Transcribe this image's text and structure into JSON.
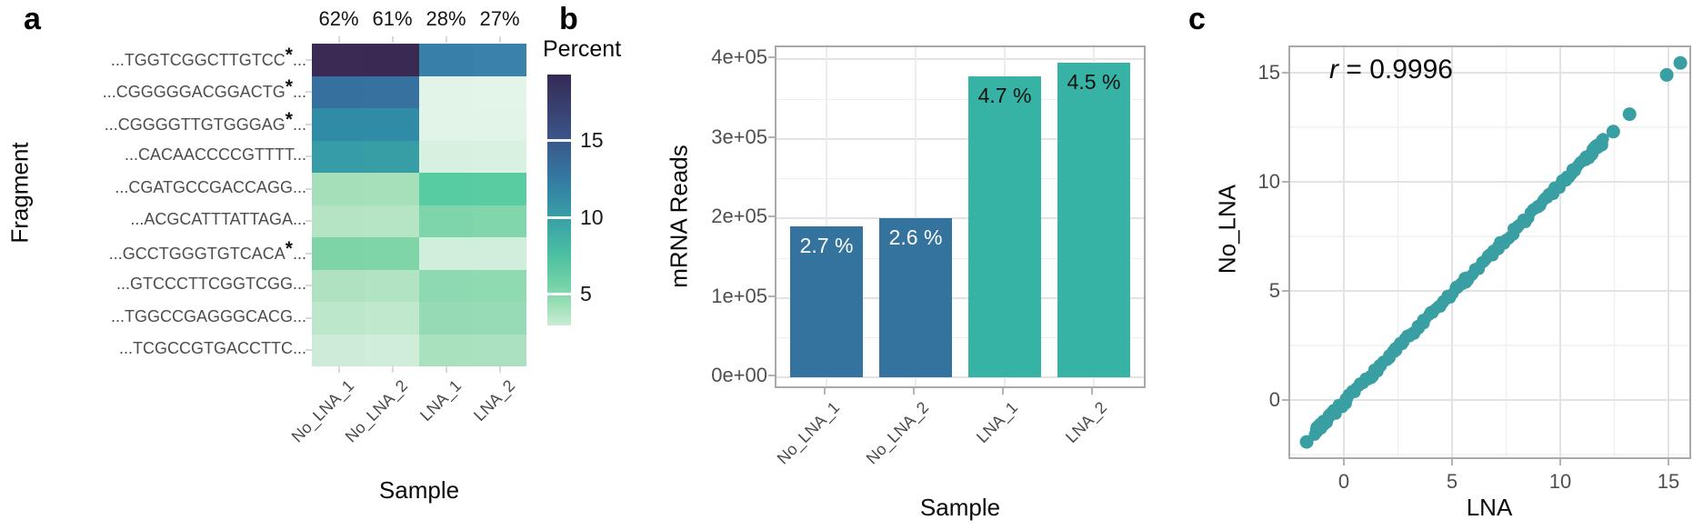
{
  "figure_labels": {
    "a": "a",
    "b": "b",
    "c": "c"
  },
  "chart_data": [
    {
      "type": "heatmap",
      "panel": "a",
      "xlabel": "Sample",
      "ylabel": "Fragment",
      "x_categories": [
        "No_LNA_1",
        "No_LNA_2",
        "LNA_1",
        "LNA_2"
      ],
      "column_header_percents": [
        "62%",
        "61%",
        "28%",
        "27%"
      ],
      "y_categories": [
        "...TGGTCGGCTTGTCC*...",
        "...CGGGGGACGGACTG*...",
        "...CGGGGTTGTGGGAG*...",
        "...CACAACCCCGTTTT...",
        "...CGATGCCGACCAGG...",
        "...ACGCATTTATTAGA...",
        "...GCCTGGGTGTCACA*...",
        "...GTCCCTTCGGTCGG...",
        "...TGGCCGAGGGCACG...",
        "...TCGCCGTGACCTTC..."
      ],
      "values_percent_estimated": [
        [
          19.0,
          18.8,
          11.3,
          11.2
        ],
        [
          13.0,
          12.8,
          1.5,
          1.4
        ],
        [
          11.5,
          11.4,
          1.5,
          1.5
        ],
        [
          9.8,
          9.7,
          2.0,
          1.9
        ],
        [
          4.0,
          3.9,
          6.3,
          6.2
        ],
        [
          3.4,
          3.3,
          5.2,
          5.1
        ],
        [
          5.6,
          5.5,
          2.4,
          2.3
        ],
        [
          3.5,
          3.4,
          4.6,
          4.5
        ],
        [
          3.0,
          2.9,
          4.3,
          4.2
        ],
        [
          2.6,
          2.5,
          3.6,
          3.5
        ]
      ],
      "cell_colors": [
        [
          "#3a2b55",
          "#382a53",
          "#3880aa",
          "#3a82ab"
        ],
        [
          "#35709f",
          "#36719f",
          "#e2f4e8",
          "#e3f5e9"
        ],
        [
          "#2f8ba6",
          "#308ca6",
          "#e2f4e8",
          "#e2f4e8"
        ],
        [
          "#369da6",
          "#379ea6",
          "#d8f0df",
          "#d9f1e0"
        ],
        [
          "#a4dfba",
          "#a6e0bb",
          "#57cba1",
          "#59cca2"
        ],
        [
          "#b4e4c4",
          "#b6e5c5",
          "#7fd5ab",
          "#81d6ac"
        ],
        [
          "#7ed4a7",
          "#80d5a8",
          "#cfeedb",
          "#d0eedc"
        ],
        [
          "#b0e2c1",
          "#b2e3c2",
          "#8ed9b1",
          "#90dab2"
        ],
        [
          "#bde7cb",
          "#bfe8cc",
          "#94dab5",
          "#96dbb6"
        ],
        [
          "#cdecd7",
          "#cfedd8",
          "#a9e1bf",
          "#abe1c0"
        ]
      ],
      "legend": {
        "title": "Percent",
        "ticks": [
          15,
          10,
          5
        ],
        "scale_top_value": 19.3,
        "scale_bottom_value": 2.9,
        "gradient": [
          {
            "c": "#352a54",
            "p": 0
          },
          {
            "c": "#3b5286",
            "p": 24
          },
          {
            "c": "#347ba3",
            "p": 42
          },
          {
            "c": "#389fa6",
            "p": 57
          },
          {
            "c": "#4cc0a2",
            "p": 72
          },
          {
            "c": "#74d2a7",
            "p": 84
          },
          {
            "c": "#a8e3bd",
            "p": 94
          },
          {
            "c": "#c9ecd4",
            "p": 100
          }
        ]
      }
    },
    {
      "type": "bar",
      "panel": "b",
      "xlabel": "Sample",
      "ylabel": "mRNA Reads",
      "categories": [
        "No_LNA_1",
        "No_LNA_2",
        "LNA_1",
        "LNA_2"
      ],
      "values": [
        190000,
        200000,
        378000,
        395000
      ],
      "bar_labels": [
        "2.7 %",
        "2.6 %",
        "4.7 %",
        "4.5 %"
      ],
      "bar_colors": [
        "#33739e",
        "#33739e",
        "#37b3a6",
        "#37b3a6"
      ],
      "bar_label_text_colors": [
        "#ffffff",
        "#ffffff",
        "#111111",
        "#111111"
      ],
      "ylim": [
        0,
        400000
      ],
      "ytick_values": [
        0,
        100000,
        200000,
        300000,
        400000
      ],
      "ytick_labels": [
        "0e+00",
        "1e+05",
        "2e+05",
        "3e+05",
        "4e+05"
      ],
      "grid": true
    },
    {
      "type": "scatter",
      "panel": "c",
      "xlabel": "LNA",
      "ylabel": "No_LNA",
      "annotation_r": "r",
      "annotation_rest": " = 0.9996",
      "point_color": "#399fa3",
      "xlim": [
        -2.6,
        16.1
      ],
      "ylim": [
        -2.8,
        16.3
      ],
      "xticks": [
        0,
        5,
        10,
        15
      ],
      "yticks": [
        0,
        5,
        10,
        15
      ],
      "grid": true,
      "dense_band": {
        "x_start": -1.3,
        "x_end": 11.95,
        "count": 240,
        "slope": 1.0,
        "intercept": -0.12,
        "jitter": 0.15,
        "seed": 7
      },
      "outlier_points": [
        [
          -1.72,
          -1.92
        ],
        [
          12.45,
          12.3
        ],
        [
          13.2,
          13.1
        ],
        [
          14.92,
          14.9
        ],
        [
          15.55,
          15.45
        ]
      ]
    }
  ]
}
